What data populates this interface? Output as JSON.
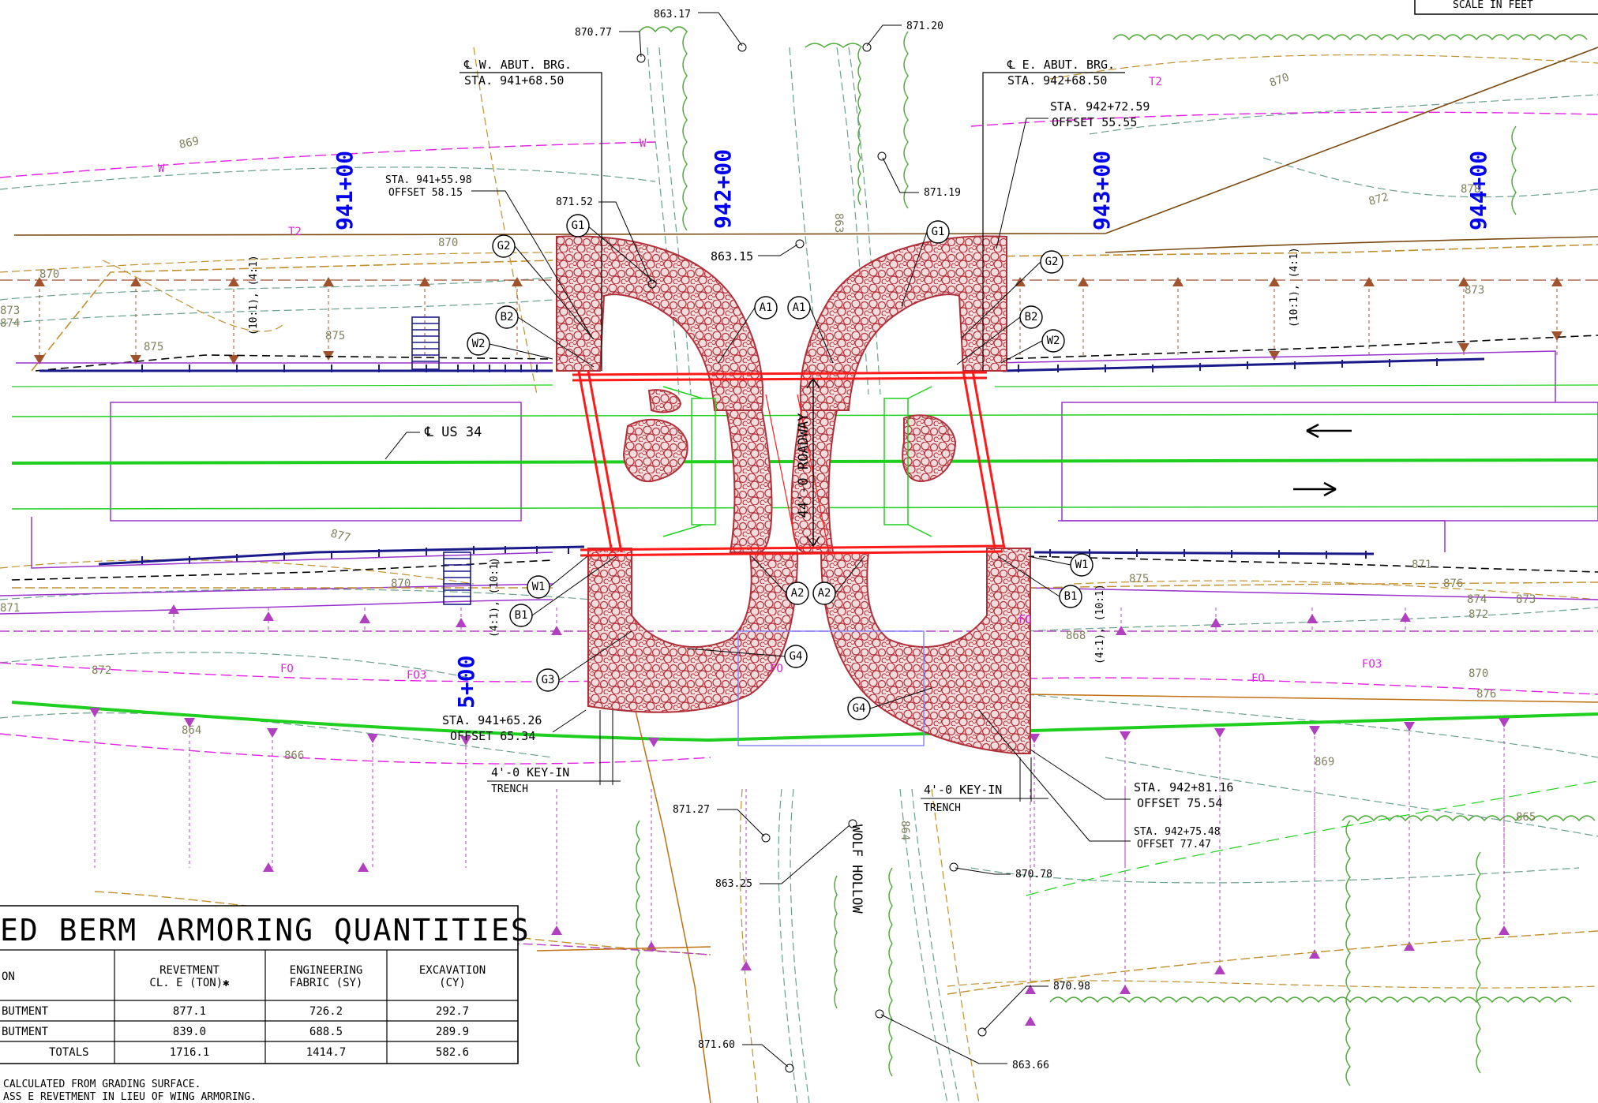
{
  "scale_label": "SCALE IN FEET",
  "stations": [
    "941+00",
    "942+00",
    "943+00",
    "944+00",
    "5+00"
  ],
  "abutments": {
    "west": {
      "line1": "℄ W. ABUT. BRG.",
      "line2": "STA. 941+68.50"
    },
    "east": {
      "line1": "℄ E. ABUT. BRG.",
      "line2": "STA. 942+68.50"
    }
  },
  "station_offsets": [
    {
      "sta": "STA. 941+55.98",
      "off": "OFFSET 58.15"
    },
    {
      "sta": "STA. 942+72.59",
      "off": "OFFSET 55.55"
    },
    {
      "sta": "STA. 941+65.26",
      "off": "OFFSET 65.34"
    },
    {
      "sta": "STA. 942+81.16",
      "off": "OFFSET 75.54"
    },
    {
      "sta": "STA. 942+75.48",
      "off": "OFFSET 77.47"
    }
  ],
  "elevations": [
    "863.17",
    "870.77",
    "871.20",
    "871.52",
    "871.19",
    "863.15",
    "871.27",
    "863.25",
    "870.78",
    "870.98",
    "871.60",
    "863.66"
  ],
  "contours": [
    "869",
    "870",
    "870",
    "871",
    "872",
    "873",
    "874",
    "875",
    "875",
    "877",
    "878",
    "876",
    "872",
    "873",
    "874",
    "875",
    "876",
    "870",
    "870",
    "869",
    "868",
    "870",
    "871",
    "873",
    "872",
    "864",
    "865",
    "863",
    "866"
  ],
  "line_codes": [
    "W",
    "W",
    "T2",
    "T2",
    "FO",
    "FO3",
    "FO",
    "FO",
    "FO3",
    "FO"
  ],
  "callouts": [
    "G1",
    "G2",
    "B2",
    "W2",
    "A1",
    "A1",
    "G1",
    "G2",
    "B2",
    "W2",
    "W1",
    "B1",
    "A2",
    "A2",
    "W1",
    "B1",
    "G3",
    "G4",
    "G4"
  ],
  "slopes": [
    "(10:1), (4:1)",
    "(4:1), (10:1)",
    "(10:1), (4:1)",
    "(4:1), (10:1)"
  ],
  "centerline_label": "℄ US 34",
  "roadway_label": "44'-0 ROADWAY",
  "key_in": {
    "line1": "4'-0 KEY-IN",
    "line2": "TRENCH"
  },
  "stream_label": "WOLF HOLLOW",
  "table": {
    "title": "ED BERM ARMORING QUANTITIES",
    "headers": {
      "c0": "ON",
      "c1a": "REVETMENT",
      "c1b": "CL. E (TON)✱",
      "c2a": "ENGINEERING",
      "c2b": "FABRIC (SY)",
      "c3a": "EXCAVATION",
      "c3b": "(CY)"
    },
    "rows": [
      {
        "loc": "BUTMENT",
        "rev": "877.1",
        "fab": "726.2",
        "exc": "292.7"
      },
      {
        "loc": "BUTMENT",
        "rev": "839.0",
        "fab": "688.5",
        "exc": "289.9"
      },
      {
        "loc": "TOTALS",
        "rev": "1716.1",
        "fab": "1414.7",
        "exc": "582.6"
      }
    ],
    "notes": [
      "CALCULATED FROM GRADING SURFACE.",
      "ASS E REVETMENT IN LIEU OF WING ARMORING."
    ]
  }
}
